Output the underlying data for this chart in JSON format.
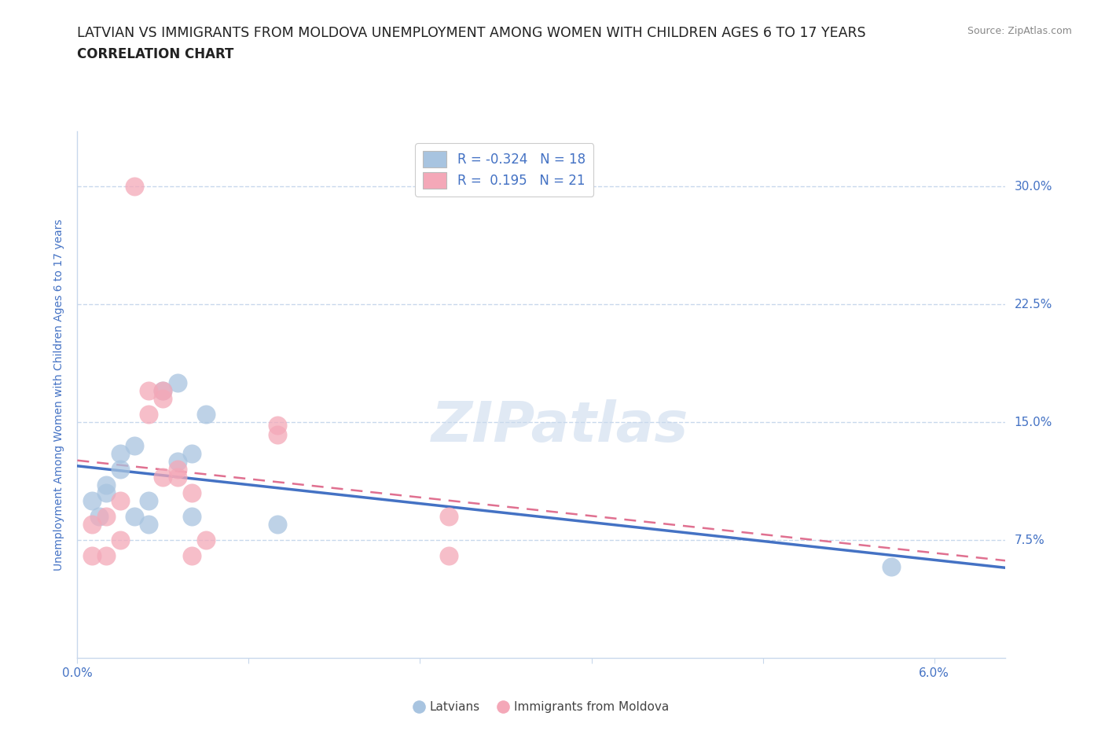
{
  "title_line1": "LATVIAN VS IMMIGRANTS FROM MOLDOVA UNEMPLOYMENT AMONG WOMEN WITH CHILDREN AGES 6 TO 17 YEARS",
  "title_line2": "CORRELATION CHART",
  "source": "Source: ZipAtlas.com",
  "xlabel_ticks": [
    "0.0%",
    "",
    "",
    "",
    "",
    "6.0%"
  ],
  "xlabel_vals": [
    0.0,
    0.012,
    0.024,
    0.036,
    0.048,
    0.06
  ],
  "ylabel_ticks": [
    "7.5%",
    "15.0%",
    "22.5%",
    "30.0%"
  ],
  "ylabel_vals": [
    0.075,
    0.15,
    0.225,
    0.3
  ],
  "xmin": 0.0,
  "xmax": 0.065,
  "ymin": 0.0,
  "ymax": 0.335,
  "watermark": "ZIPatlas",
  "latvian_color": "#a8c4e0",
  "moldova_color": "#f4a8b8",
  "latvian_line_color": "#4472c4",
  "moldova_line_color": "#e07090",
  "legend_latvian_label": "R = -0.324   N = 18",
  "legend_moldova_label": "R =  0.195   N = 21",
  "latvian_x": [
    0.001,
    0.0015,
    0.002,
    0.002,
    0.003,
    0.003,
    0.004,
    0.004,
    0.005,
    0.005,
    0.006,
    0.007,
    0.007,
    0.008,
    0.008,
    0.009,
    0.014,
    0.057
  ],
  "latvian_y": [
    0.1,
    0.09,
    0.105,
    0.11,
    0.13,
    0.12,
    0.135,
    0.09,
    0.1,
    0.085,
    0.17,
    0.175,
    0.125,
    0.13,
    0.09,
    0.155,
    0.085,
    0.058
  ],
  "moldova_x": [
    0.001,
    0.001,
    0.002,
    0.002,
    0.003,
    0.003,
    0.004,
    0.005,
    0.005,
    0.006,
    0.006,
    0.006,
    0.007,
    0.007,
    0.008,
    0.008,
    0.009,
    0.014,
    0.014,
    0.026,
    0.026
  ],
  "moldova_y": [
    0.085,
    0.065,
    0.09,
    0.065,
    0.1,
    0.075,
    0.3,
    0.155,
    0.17,
    0.165,
    0.17,
    0.115,
    0.12,
    0.115,
    0.105,
    0.065,
    0.075,
    0.148,
    0.142,
    0.09,
    0.065
  ],
  "ylabel": "Unemployment Among Women with Children Ages 6 to 17 years",
  "axis_label_color": "#4472c4",
  "tick_color": "#4472c4",
  "grid_color": "#c8d8ec",
  "background_color": "#ffffff",
  "bottom_legend_labels": [
    "Latvians",
    "Immigrants from Moldova"
  ]
}
